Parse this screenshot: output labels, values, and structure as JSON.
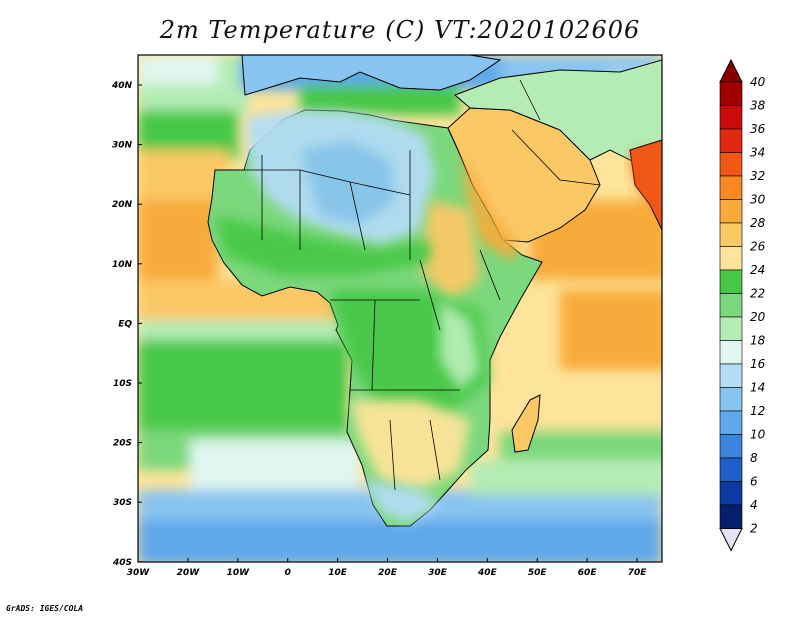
{
  "title": "2m Temperature (C) VT:2020102606",
  "credit": "GrADS: IGES/COLA",
  "map": {
    "lon_range": [
      -30,
      75
    ],
    "lat_range": [
      -40,
      45
    ],
    "lon_ticks": [
      "30W",
      "20W",
      "10W",
      "0",
      "10E",
      "20E",
      "30E",
      "40E",
      "50E",
      "60E",
      "70E"
    ],
    "lat_ticks": [
      "40N",
      "30N",
      "20N",
      "10N",
      "EQ",
      "10S",
      "20S",
      "30S",
      "40S"
    ]
  },
  "colorbar": {
    "labels": [
      "40",
      "38",
      "36",
      "34",
      "32",
      "30",
      "28",
      "26",
      "24",
      "22",
      "20",
      "18",
      "16",
      "14",
      "12",
      "10",
      "8",
      "6",
      "4",
      "2"
    ],
    "colors": [
      "#a00000",
      "#cc0a0a",
      "#e02a10",
      "#f05818",
      "#f78822",
      "#f8ab3a",
      "#fbc866",
      "#fde49a",
      "#46c846",
      "#7cd87c",
      "#b4ecb4",
      "#e0f6f0",
      "#b4dcf6",
      "#88c4f0",
      "#60a8ea",
      "#3a84dc",
      "#1f60c8",
      "#0c3aa0",
      "#061f6e"
    ],
    "top_color": "#8a0000",
    "bottom_color": "#e6e0f8"
  },
  "palette": {
    "ocean_warm": "#fbc866",
    "ocean_very_warm": "#f8ab3a",
    "ocean_mild": "#fde49a",
    "green": "#46c846",
    "light_green": "#7cd87c",
    "pale_green": "#b4ecb4",
    "pale_cyan": "#e0f6f0",
    "light_blue": "#b4dcf6",
    "blue": "#88c4f0",
    "mid_blue": "#60a8ea",
    "hot": "#f78822",
    "very_hot": "#f05818"
  }
}
